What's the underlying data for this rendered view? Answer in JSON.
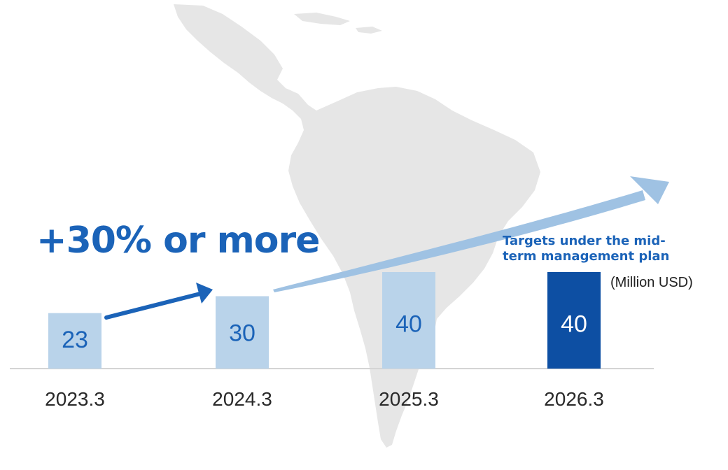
{
  "colors": {
    "actual_bar": "#b9d3ea",
    "target_bar": "#0d4fa3",
    "actual_label": "#1b63b8",
    "target_label": "#ffffff",
    "arrow": "#1b63b8",
    "trend_arrow": "#9fc2e3",
    "map": "#e5e5e5",
    "axis": "#d4d4d4"
  },
  "annotations": {
    "growth": "+30% or more",
    "target_note": "Targets under the mid-term management plan",
    "unit": "(Million USD)"
  },
  "chart_data": {
    "type": "bar",
    "categories": [
      "2023.3",
      "2024.3",
      "2025.3",
      "2026.3"
    ],
    "values": [
      23,
      30,
      40,
      40
    ],
    "bar_kind": [
      "actual",
      "actual",
      "actual",
      "target"
    ],
    "unit": "Million USD",
    "title": "",
    "xlabel": "",
    "ylabel": ""
  }
}
